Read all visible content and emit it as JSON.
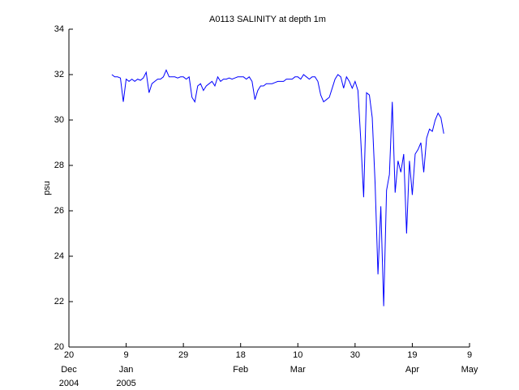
{
  "chart_data": {
    "type": "line",
    "title": "A0113 SALINITY at depth 1m",
    "ylabel": "psu",
    "x": [
      "2005-01-04",
      "2005-01-05",
      "2005-01-06",
      "2005-01-07",
      "2005-01-08",
      "2005-01-09",
      "2005-01-10",
      "2005-01-11",
      "2005-01-12",
      "2005-01-13",
      "2005-01-14",
      "2005-01-15",
      "2005-01-16",
      "2005-01-17",
      "2005-01-18",
      "2005-01-19",
      "2005-01-20",
      "2005-01-21",
      "2005-01-22",
      "2005-01-23",
      "2005-01-24",
      "2005-01-25",
      "2005-01-26",
      "2005-01-27",
      "2005-01-28",
      "2005-01-29",
      "2005-01-30",
      "2005-01-31",
      "2005-02-01",
      "2005-02-02",
      "2005-02-03",
      "2005-02-04",
      "2005-02-05",
      "2005-02-06",
      "2005-02-07",
      "2005-02-08",
      "2005-02-09",
      "2005-02-10",
      "2005-02-11",
      "2005-02-12",
      "2005-02-13",
      "2005-02-14",
      "2005-02-15",
      "2005-02-16",
      "2005-02-17",
      "2005-02-18",
      "2005-02-19",
      "2005-02-20",
      "2005-02-21",
      "2005-02-22",
      "2005-02-23",
      "2005-02-24",
      "2005-02-25",
      "2005-02-26",
      "2005-02-27",
      "2005-02-28",
      "2005-03-01",
      "2005-03-02",
      "2005-03-03",
      "2005-03-04",
      "2005-03-05",
      "2005-03-06",
      "2005-03-07",
      "2005-03-08",
      "2005-03-09",
      "2005-03-10",
      "2005-03-11",
      "2005-03-12",
      "2005-03-13",
      "2005-03-14",
      "2005-03-15",
      "2005-03-16",
      "2005-03-17",
      "2005-03-18",
      "2005-03-19",
      "2005-03-20",
      "2005-03-21",
      "2005-03-22",
      "2005-03-23",
      "2005-03-24",
      "2005-03-25",
      "2005-03-26",
      "2005-03-27",
      "2005-03-28",
      "2005-03-29",
      "2005-03-30",
      "2005-03-31",
      "2005-04-01",
      "2005-04-02",
      "2005-04-03",
      "2005-04-04",
      "2005-04-05",
      "2005-04-06",
      "2005-04-07",
      "2005-04-08",
      "2005-04-09",
      "2005-04-10",
      "2005-04-11",
      "2005-04-12",
      "2005-04-13",
      "2005-04-14",
      "2005-04-15",
      "2005-04-16",
      "2005-04-17",
      "2005-04-18",
      "2005-04-19",
      "2005-04-20",
      "2005-04-21",
      "2005-04-22",
      "2005-04-23",
      "2005-04-24",
      "2005-04-25",
      "2005-04-26",
      "2005-04-27",
      "2005-04-28",
      "2005-04-29",
      "2005-04-30"
    ],
    "series": [
      {
        "name": "salinity",
        "color": "#0000ff",
        "values": [
          32.0,
          31.9,
          31.9,
          31.85,
          30.8,
          31.8,
          31.7,
          31.8,
          31.7,
          31.8,
          31.75,
          31.85,
          32.1,
          31.2,
          31.6,
          31.7,
          31.8,
          31.8,
          31.9,
          32.2,
          31.9,
          31.9,
          31.9,
          31.85,
          31.9,
          31.9,
          31.8,
          31.9,
          31.0,
          30.8,
          31.5,
          31.6,
          31.3,
          31.5,
          31.6,
          31.7,
          31.5,
          31.9,
          31.7,
          31.8,
          31.8,
          31.85,
          31.8,
          31.85,
          31.9,
          31.9,
          31.9,
          31.8,
          31.9,
          31.7,
          30.9,
          31.3,
          31.5,
          31.5,
          31.6,
          31.6,
          31.6,
          31.65,
          31.7,
          31.7,
          31.7,
          31.8,
          31.8,
          31.8,
          31.9,
          31.9,
          31.8,
          32.0,
          31.9,
          31.8,
          31.9,
          31.9,
          31.7,
          31.1,
          30.8,
          30.9,
          31.0,
          31.4,
          31.8,
          32.0,
          31.9,
          31.4,
          31.9,
          31.7,
          31.4,
          31.7,
          31.3,
          29.1,
          26.6,
          31.2,
          31.1,
          30.1,
          27.2,
          23.2,
          26.2,
          21.8,
          26.9,
          27.6,
          30.8,
          26.8,
          28.2,
          27.7,
          28.5,
          25.0,
          28.2,
          26.7,
          28.5,
          28.7,
          29.0,
          27.7,
          29.2,
          29.6,
          29.5,
          30.0,
          30.3,
          30.1,
          29.4
        ]
      }
    ],
    "xlim": [
      "2004-12-20",
      "2005-05-09"
    ],
    "xticks": [
      {
        "value": "2004-12-20",
        "label": "20"
      },
      {
        "value": "2005-01-09",
        "label": "9"
      },
      {
        "value": "2005-01-29",
        "label": "29"
      },
      {
        "value": "2005-02-18",
        "label": "18"
      },
      {
        "value": "2005-03-10",
        "label": "10"
      },
      {
        "value": "2005-03-30",
        "label": "30"
      },
      {
        "value": "2005-04-19",
        "label": "19"
      },
      {
        "value": "2005-05-09",
        "label": "9"
      }
    ],
    "xtick_months": [
      "Dec",
      "Jan",
      null,
      "Feb",
      "Mar",
      null,
      "Apr",
      "May"
    ],
    "xtick_years": [
      "2004",
      "2005",
      null,
      null,
      null,
      null,
      null,
      null
    ],
    "ylim": [
      20,
      34
    ],
    "yticks": [
      20,
      22,
      24,
      26,
      28,
      30,
      32,
      34
    ],
    "grid": false
  }
}
